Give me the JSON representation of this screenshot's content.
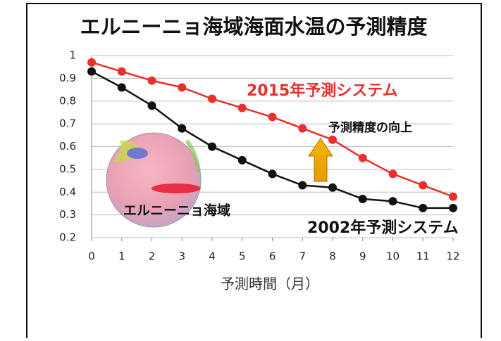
{
  "chart_data": {
    "type": "line",
    "title": "エルニーニョ海域海面水温の予測精度",
    "x_label": "予測時間（月）",
    "x": [
      0,
      1,
      2,
      3,
      4,
      5,
      6,
      7,
      8,
      9,
      10,
      11,
      12
    ],
    "series": [
      {
        "name": "2015年予測システム",
        "color": "#e8302c",
        "values": [
          0.97,
          0.93,
          0.89,
          0.86,
          0.81,
          0.77,
          0.73,
          0.68,
          0.63,
          0.55,
          0.48,
          0.43,
          0.38
        ]
      },
      {
        "name": "2002年予測システム",
        "color": "#111111",
        "values": [
          0.93,
          0.86,
          0.78,
          0.68,
          0.6,
          0.54,
          0.48,
          0.43,
          0.42,
          0.37,
          0.36,
          0.33,
          0.33
        ]
      }
    ],
    "annotations": [
      "予測精度の向上",
      "エルニーニョ海域"
    ],
    "xlim": [
      0,
      12
    ],
    "xticks": [
      0,
      1,
      2,
      3,
      4,
      5,
      6,
      7,
      8,
      9,
      10,
      11,
      12
    ],
    "ylim": [
      0.2,
      1
    ],
    "yticks": [
      0.2,
      0.3,
      0.4,
      0.5,
      0.6,
      0.7,
      0.8,
      0.9,
      1
    ],
    "grid": true
  }
}
